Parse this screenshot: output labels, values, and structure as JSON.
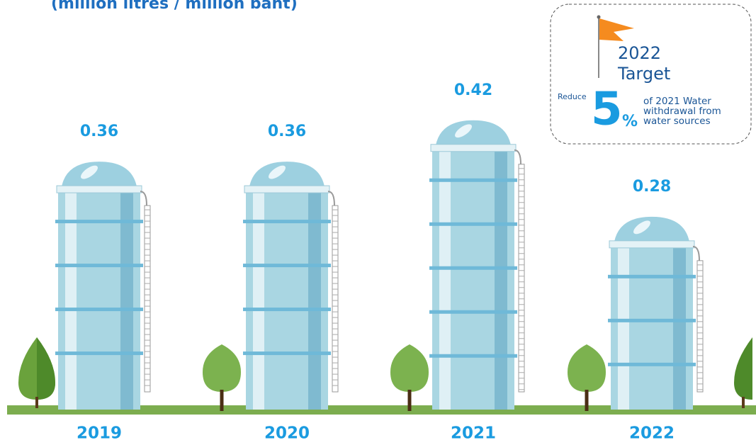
{
  "chart_data": {
    "type": "bar",
    "title": "(million litres / million baht)",
    "categories": [
      "2019",
      "2020",
      "2021",
      "2022"
    ],
    "values": [
      0.36,
      0.36,
      0.42,
      0.28
    ],
    "color": "#a9d6e2",
    "target": {
      "year": "2022",
      "label": "Target",
      "prefix": "Reduce",
      "value": 5,
      "unit": "%",
      "text": [
        "of 2021 Water",
        "withdrawal from",
        "water sources"
      ]
    }
  }
}
